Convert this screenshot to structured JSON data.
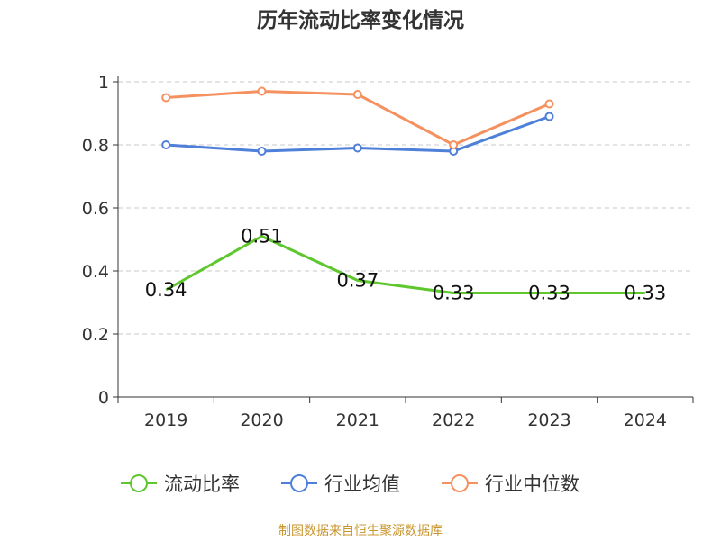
{
  "chart_data": {
    "type": "line",
    "title": "历年流动比率变化情况",
    "categories": [
      "2019",
      "2020",
      "2021",
      "2022",
      "2023",
      "2024"
    ],
    "ylim": [
      0,
      1
    ],
    "yticks": [
      0,
      0.2,
      0.4,
      0.6,
      0.8,
      1
    ],
    "ytick_labels": [
      "0",
      "0.2",
      "0.4",
      "0.6",
      "0.8",
      "1"
    ],
    "grid": true,
    "legend_position": "bottom",
    "series": [
      {
        "name": "流动比率",
        "color": "#5dc72d",
        "values": [
          0.34,
          0.51,
          0.37,
          0.33,
          0.33,
          0.33
        ],
        "labels": [
          "0.34",
          "0.51",
          "0.37",
          "0.33",
          "0.33",
          "0.33"
        ],
        "show_markers": false,
        "show_labels": true
      },
      {
        "name": "行业均值",
        "color": "#4e7fd9",
        "values": [
          0.8,
          0.78,
          0.79,
          0.78,
          0.89,
          null
        ],
        "show_markers": true,
        "show_labels": false
      },
      {
        "name": "行业中位数",
        "color": "#f5915f",
        "values": [
          0.95,
          0.97,
          0.96,
          0.8,
          0.93,
          null
        ],
        "show_markers": true,
        "show_labels": false
      }
    ]
  },
  "source_note": "制图数据来自恒生聚源数据库"
}
